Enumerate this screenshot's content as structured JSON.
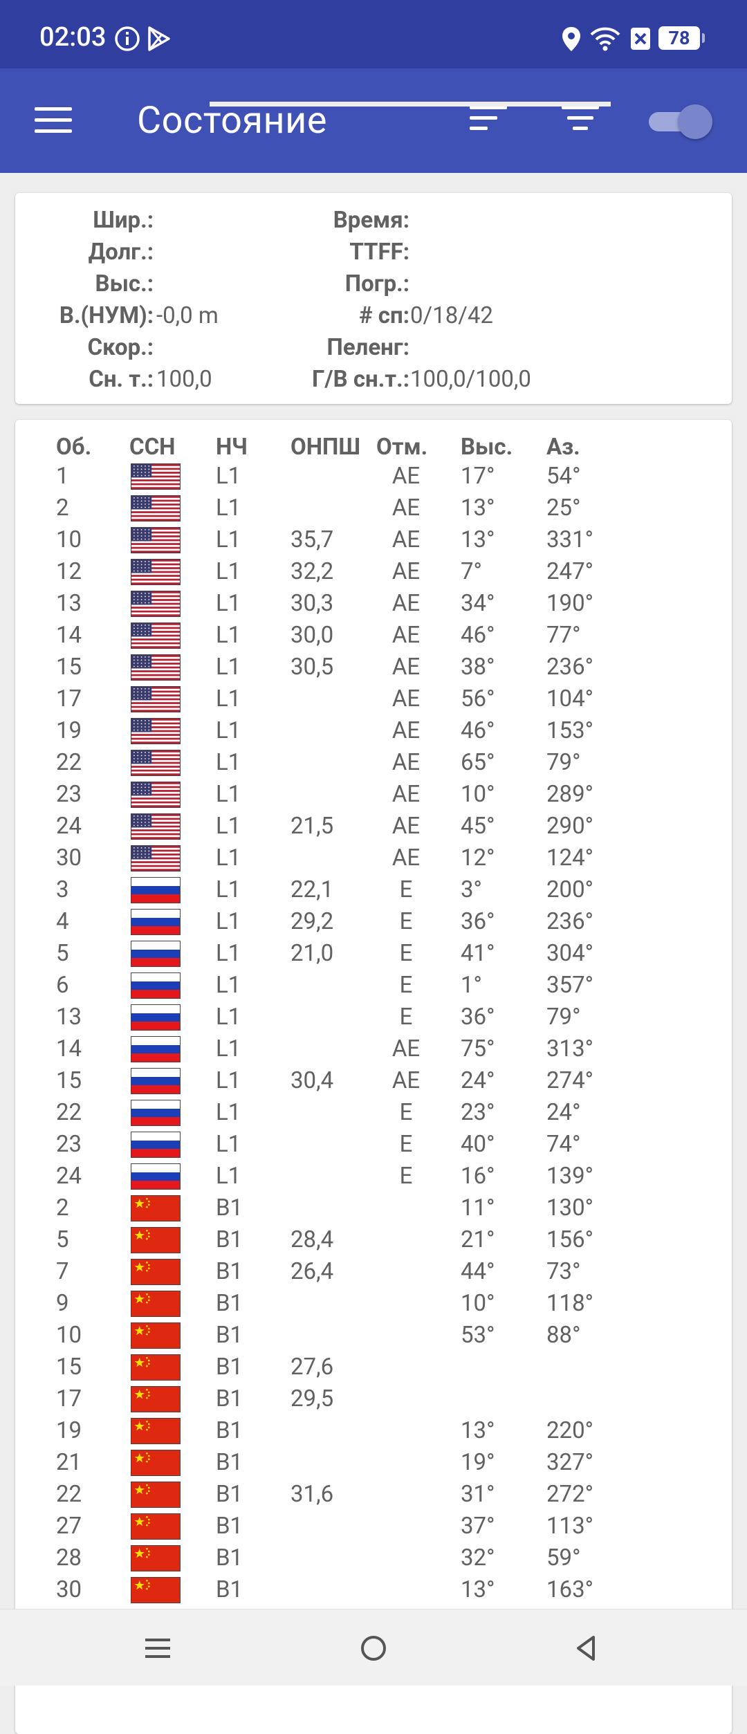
{
  "status_bar": {
    "time": "02:03",
    "battery": "78"
  },
  "app_bar": {
    "title": "Состояние"
  },
  "info": {
    "left": [
      {
        "label": "Шир.:",
        "value": ""
      },
      {
        "label": "Долг.:",
        "value": ""
      },
      {
        "label": "Выс.:",
        "value": ""
      },
      {
        "label": "В.(НУМ):",
        "value": "-0,0  m"
      },
      {
        "label": "Скор.:",
        "value": ""
      },
      {
        "label": "Сн. т.:",
        "value": "100,0"
      }
    ],
    "right": [
      {
        "label": "Время:",
        "value": ""
      },
      {
        "label": "TTFF:",
        "value": ""
      },
      {
        "label": "Погр.:",
        "value": ""
      },
      {
        "label": "# сп:",
        "value": "0/18/42"
      },
      {
        "label": "Пеленг:",
        "value": ""
      },
      {
        "label": "Г/В сн.т.:",
        "value": "100,0/100,0"
      }
    ]
  },
  "table": {
    "headers": {
      "id": "Об.",
      "gnss": "ССН",
      "band": "НЧ",
      "snr": "ОНПШ",
      "flags": "Отм.",
      "elev": "Выс.",
      "az": "Аз."
    },
    "rows": [
      {
        "id": "1",
        "flag": "us",
        "band": "L1",
        "snr": "",
        "flags": "AE",
        "elev": "17°",
        "az": "54°"
      },
      {
        "id": "2",
        "flag": "us",
        "band": "L1",
        "snr": "",
        "flags": "AE",
        "elev": "13°",
        "az": "25°"
      },
      {
        "id": "10",
        "flag": "us",
        "band": "L1",
        "snr": "35,7",
        "flags": "AE",
        "elev": "13°",
        "az": "331°"
      },
      {
        "id": "12",
        "flag": "us",
        "band": "L1",
        "snr": "32,2",
        "flags": "AE",
        "elev": "7°",
        "az": "247°"
      },
      {
        "id": "13",
        "flag": "us",
        "band": "L1",
        "snr": "30,3",
        "flags": "AE",
        "elev": "34°",
        "az": "190°"
      },
      {
        "id": "14",
        "flag": "us",
        "band": "L1",
        "snr": "30,0",
        "flags": "AE",
        "elev": "46°",
        "az": "77°"
      },
      {
        "id": "15",
        "flag": "us",
        "band": "L1",
        "snr": "30,5",
        "flags": "AE",
        "elev": "38°",
        "az": "236°"
      },
      {
        "id": "17",
        "flag": "us",
        "band": "L1",
        "snr": "",
        "flags": "AE",
        "elev": "56°",
        "az": "104°"
      },
      {
        "id": "19",
        "flag": "us",
        "band": "L1",
        "snr": "",
        "flags": "AE",
        "elev": "46°",
        "az": "153°"
      },
      {
        "id": "22",
        "flag": "us",
        "band": "L1",
        "snr": "",
        "flags": "AE",
        "elev": "65°",
        "az": "79°"
      },
      {
        "id": "23",
        "flag": "us",
        "band": "L1",
        "snr": "",
        "flags": "AE",
        "elev": "10°",
        "az": "289°"
      },
      {
        "id": "24",
        "flag": "us",
        "band": "L1",
        "snr": "21,5",
        "flags": "AE",
        "elev": "45°",
        "az": "290°"
      },
      {
        "id": "30",
        "flag": "us",
        "band": "L1",
        "snr": "",
        "flags": "AE",
        "elev": "12°",
        "az": "124°"
      },
      {
        "id": "3",
        "flag": "ru",
        "band": "L1",
        "snr": "22,1",
        "flags": "E",
        "elev": "3°",
        "az": "200°"
      },
      {
        "id": "4",
        "flag": "ru",
        "band": "L1",
        "snr": "29,2",
        "flags": "E",
        "elev": "36°",
        "az": "236°"
      },
      {
        "id": "5",
        "flag": "ru",
        "band": "L1",
        "snr": "21,0",
        "flags": "E",
        "elev": "41°",
        "az": "304°"
      },
      {
        "id": "6",
        "flag": "ru",
        "band": "L1",
        "snr": "",
        "flags": "E",
        "elev": "1°",
        "az": "357°"
      },
      {
        "id": "13",
        "flag": "ru",
        "band": "L1",
        "snr": "",
        "flags": "E",
        "elev": "36°",
        "az": "79°"
      },
      {
        "id": "14",
        "flag": "ru",
        "band": "L1",
        "snr": "",
        "flags": "AE",
        "elev": "75°",
        "az": "313°"
      },
      {
        "id": "15",
        "flag": "ru",
        "band": "L1",
        "snr": "30,4",
        "flags": "AE",
        "elev": "24°",
        "az": "274°"
      },
      {
        "id": "22",
        "flag": "ru",
        "band": "L1",
        "snr": "",
        "flags": "E",
        "elev": "23°",
        "az": "24°"
      },
      {
        "id": "23",
        "flag": "ru",
        "band": "L1",
        "snr": "",
        "flags": "E",
        "elev": "40°",
        "az": "74°"
      },
      {
        "id": "24",
        "flag": "ru",
        "band": "L1",
        "snr": "",
        "flags": "E",
        "elev": "16°",
        "az": "139°"
      },
      {
        "id": "2",
        "flag": "cn",
        "band": "B1",
        "snr": "",
        "flags": "",
        "elev": "11°",
        "az": "130°"
      },
      {
        "id": "5",
        "flag": "cn",
        "band": "B1",
        "snr": "28,4",
        "flags": "",
        "elev": "21°",
        "az": "156°"
      },
      {
        "id": "7",
        "flag": "cn",
        "band": "B1",
        "snr": "26,4",
        "flags": "",
        "elev": "44°",
        "az": "73°"
      },
      {
        "id": "9",
        "flag": "cn",
        "band": "B1",
        "snr": "",
        "flags": "",
        "elev": "10°",
        "az": "118°"
      },
      {
        "id": "10",
        "flag": "cn",
        "band": "B1",
        "snr": "",
        "flags": "",
        "elev": "53°",
        "az": "88°"
      },
      {
        "id": "15",
        "flag": "cn",
        "band": "B1",
        "snr": "27,6",
        "flags": "",
        "elev": "",
        "az": ""
      },
      {
        "id": "17",
        "flag": "cn",
        "band": "B1",
        "snr": "29,5",
        "flags": "",
        "elev": "",
        "az": ""
      },
      {
        "id": "19",
        "flag": "cn",
        "band": "B1",
        "snr": "",
        "flags": "",
        "elev": "13°",
        "az": "220°"
      },
      {
        "id": "21",
        "flag": "cn",
        "band": "B1",
        "snr": "",
        "flags": "",
        "elev": "19°",
        "az": "327°"
      },
      {
        "id": "22",
        "flag": "cn",
        "band": "B1",
        "snr": "31,6",
        "flags": "",
        "elev": "31°",
        "az": "272°"
      },
      {
        "id": "27",
        "flag": "cn",
        "band": "B1",
        "snr": "",
        "flags": "",
        "elev": "37°",
        "az": "113°"
      },
      {
        "id": "28",
        "flag": "cn",
        "band": "B1",
        "snr": "",
        "flags": "",
        "elev": "32°",
        "az": "59°"
      },
      {
        "id": "30",
        "flag": "cn",
        "band": "B1",
        "snr": "",
        "flags": "",
        "elev": "13°",
        "az": "163°"
      }
    ]
  },
  "icons": {
    "flag_us": "usa-flag-icon",
    "flag_ru": "russia-flag-icon",
    "flag_cn": "china-flag-icon"
  },
  "colors": {
    "primary": "#3f51b5",
    "primary_dark": "#303f9f",
    "accent": "#7986cb"
  }
}
